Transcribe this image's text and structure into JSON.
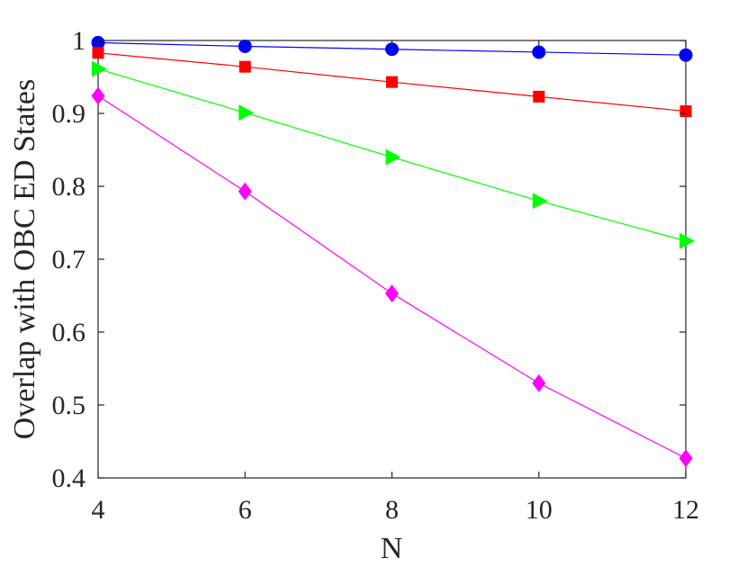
{
  "chart_data": {
    "type": "line",
    "title": "",
    "xlabel": "N",
    "ylabel": "Overlap with OBC ED States",
    "x": [
      4,
      6,
      8,
      10,
      12
    ],
    "xlim": [
      4,
      12
    ],
    "ylim": [
      0.4,
      1.0
    ],
    "x_ticks": [
      "4",
      "6",
      "8",
      "10",
      "12"
    ],
    "y_ticks": [
      "0.4",
      "0.5",
      "0.6",
      "0.7",
      "0.8",
      "0.9",
      "1"
    ],
    "grid": false,
    "legend": "none",
    "series": [
      {
        "color": "#0000ff",
        "marker": "circle",
        "values": [
          0.997,
          0.992,
          0.988,
          0.984,
          0.98
        ]
      },
      {
        "color": "#ff0000",
        "marker": "square",
        "values": [
          0.983,
          0.964,
          0.943,
          0.923,
          0.903
        ]
      },
      {
        "color": "#00ff00",
        "marker": "triangle-right",
        "values": [
          0.961,
          0.901,
          0.84,
          0.78,
          0.725
        ]
      },
      {
        "color": "#ff00ff",
        "marker": "diamond",
        "values": [
          0.924,
          0.793,
          0.653,
          0.53,
          0.427
        ]
      }
    ]
  }
}
